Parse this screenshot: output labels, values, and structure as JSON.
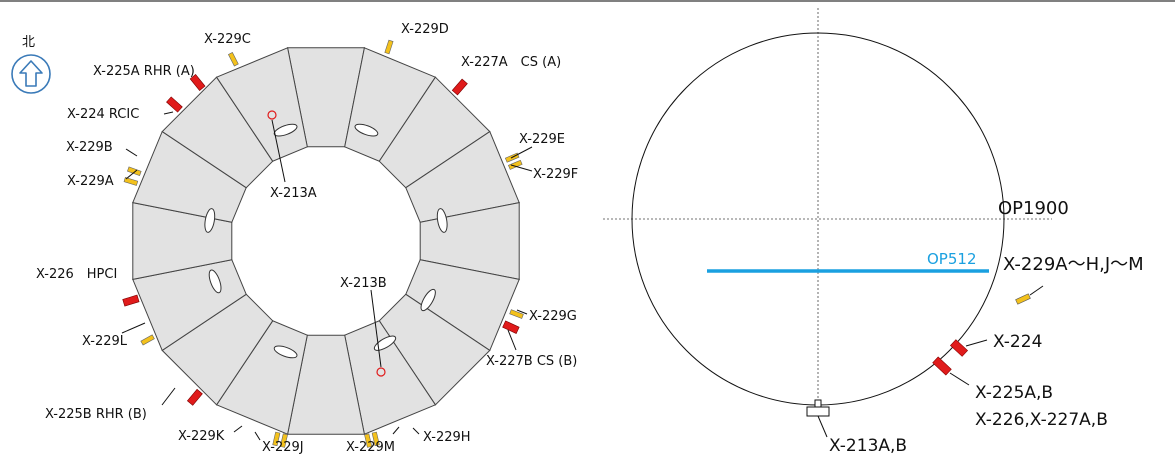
{
  "north_label": "北",
  "colors": {
    "segment_fill": "#e2e2e2",
    "segment_stroke": "#444444",
    "yellow": "#f3c11c",
    "red": "#e01b1b",
    "water_line": "#1aa0e0",
    "arrow": "#3a7ab8"
  },
  "left_labels": {
    "x229c": "X-229C",
    "x229d": "X-229D",
    "x225a": "X-225A RHR (A)",
    "x227a": "X-227A　CS (A)",
    "x224": "X-224 RCIC",
    "x229e": "X-229E",
    "x229b": "X-229B",
    "x229f": "X-229F",
    "x229a": "X-229A",
    "x213a": "X-213A",
    "x226": "X-226　HPCI",
    "x213b": "X-213B",
    "x229g": "X-229G",
    "x229l": "X-229L",
    "x227b": "X-227B CS (B)",
    "x225b": "X-225B RHR (B)",
    "x229k": "X-229K",
    "x229j": "X-229J",
    "x229m": "X-229M",
    "x229h": "X-229H"
  },
  "right_labels": {
    "op1900": "OP1900",
    "op512": "OP512",
    "x229_group": "X-229A～H,J～M",
    "x224": "X-224",
    "x225ab": "X-225A,B",
    "x226_227": "X-226,X-227A,B",
    "x213ab": "X-213A,B"
  }
}
